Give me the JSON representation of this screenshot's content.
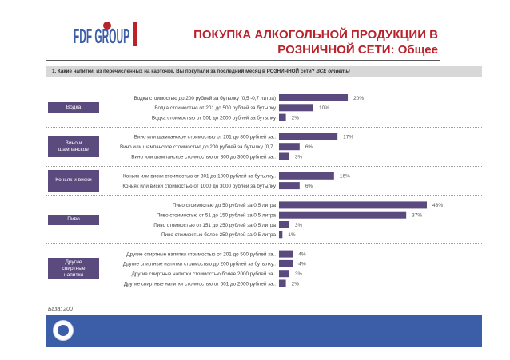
{
  "header": {
    "logo_text": "FDF GROUP",
    "title_line1": "ПОКУПКА АЛКОГОЛЬНОЙ ПРОДУКЦИИ В",
    "title_line2": "РОЗНИЧНОЙ СЕТИ: Общее"
  },
  "question": {
    "text": "1. Какие напитки, из перечисленных на карточке. Вы покупали за последний месяц в РОЗНИЧНОЙ сети? ",
    "emphasis": "ВСЕ ответы"
  },
  "base_note": "База: 200",
  "footer": {
    "badge_icon": "esomar-badge-icon"
  },
  "colors": {
    "bar": "#5b4a7d",
    "title": "#b8232c",
    "group": "#5b4a7d",
    "footer": "#3c5ea8"
  },
  "chart_data": {
    "type": "bar",
    "orientation": "horizontal",
    "unit": "%",
    "xlim": [
      0,
      43
    ],
    "groups": [
      {
        "name": "Водка",
        "items": [
          {
            "label": "Водка стоимостью до 200 рублей за бутылку (0,5 -0,7 литра)",
            "value": 20
          },
          {
            "label": "Водка стоимостью от 201 до 500 рублей за бутылку",
            "value": 10
          },
          {
            "label": "Водка стоимостью от 501 до 2000 рублей за бутылку",
            "value": 2
          }
        ]
      },
      {
        "name": "Вино и шампанское",
        "items": [
          {
            "label": "Вино или шампанское стоимостью от 201 до 800 рублей за..",
            "value": 17
          },
          {
            "label": "Вино или шампанское стоимостью до 200 рублей за бутылку (0,7..",
            "value": 6
          },
          {
            "label": "Вино или шампанское стоимостью от 800 до 3000 рублей за..",
            "value": 3
          }
        ]
      },
      {
        "name": "Коньяк и виски",
        "items": [
          {
            "label": "Коньяк или виски стоимостью от 301 до 1000 рублей за бутылку..",
            "value": 16
          },
          {
            "label": "Коньяк или виски стоимостью от  1000 до 3000 рублей за бутылку",
            "value": 6
          }
        ]
      },
      {
        "name": "Пиво",
        "items": [
          {
            "label": "Пиво стоимостью до 50 рублей за 0,5 литра",
            "value": 43
          },
          {
            "label": "Пиво  стоимостью от 51 до 150 рублей за 0,5 литра",
            "value": 37
          },
          {
            "label": "Пиво стоимостью от 151 до 250 рублей за 0,5 литра",
            "value": 3
          },
          {
            "label": "Пиво стоимостью более 250 рублей за 0,5 литра",
            "value": 1
          }
        ]
      },
      {
        "name": "Другие спиртные напитки",
        "items": [
          {
            "label": "Другие спиртные напитки стоимостью от 201 до 500 рублей за..",
            "value": 4
          },
          {
            "label": "Другие спиртные напитки стоимостью до 200 рублей за бутылку..",
            "value": 4
          },
          {
            "label": "Другие спиртные напитки стоимостью более 2000 рублей за..",
            "value": 3
          },
          {
            "label": "Другие спиртные напитки стоимостью от 501 до 2000 рублей за..",
            "value": 2
          }
        ]
      }
    ]
  }
}
